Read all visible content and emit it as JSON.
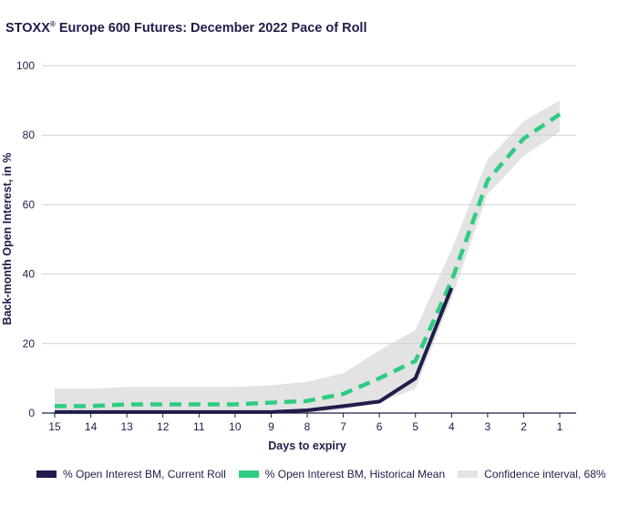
{
  "chart_data": {
    "type": "line",
    "title_prefix": "STOXX",
    "title_registered": "®",
    "title_suffix": " Europe 600 Futures: December 2022 Pace of Roll",
    "xlabel": "Days to expiry",
    "ylabel": "Back-month Open Interest, in %",
    "x": [
      15,
      14,
      13,
      12,
      11,
      10,
      9,
      8,
      7,
      6,
      5,
      4,
      3,
      2,
      1
    ],
    "x_tick_labels": [
      "15",
      "14",
      "13",
      "12",
      "11",
      "10",
      "9",
      "8",
      "7",
      "6",
      "5",
      "4",
      "3",
      "2",
      "1"
    ],
    "ylim": [
      0,
      100
    ],
    "y_ticks": [
      0,
      20,
      40,
      60,
      80,
      100
    ],
    "y_tick_labels": [
      "0",
      "20",
      "40",
      "60",
      "80",
      "100"
    ],
    "grid": "horizontal",
    "legend_position": "bottom",
    "series": [
      {
        "name": "% Open Interest BM, Current Roll",
        "color": "#1f1d4a",
        "style": "solid",
        "values": [
          0.3,
          0.3,
          0.3,
          0.3,
          0.3,
          0.3,
          0.3,
          0.8,
          2,
          3.3,
          10,
          36,
          null,
          null,
          null
        ]
      },
      {
        "name": "% Open Interest BM, Historical Mean",
        "color": "#2ecc80",
        "style": "dashed",
        "values": [
          2,
          2,
          2.5,
          2.5,
          2.5,
          2.5,
          3,
          3.5,
          5.5,
          10,
          15,
          38,
          67,
          79,
          86
        ]
      }
    ],
    "confidence_band": {
      "name": "Confidence interval, 68%",
      "color": "#e3e3e3",
      "lower": [
        0,
        0,
        0,
        0,
        0,
        0,
        0,
        0,
        1,
        3,
        7,
        33,
        63,
        74,
        81
      ],
      "upper": [
        7,
        7,
        7.5,
        7.5,
        7.5,
        7.5,
        8,
        9,
        11.5,
        18,
        24,
        47,
        73,
        84,
        90
      ]
    }
  }
}
